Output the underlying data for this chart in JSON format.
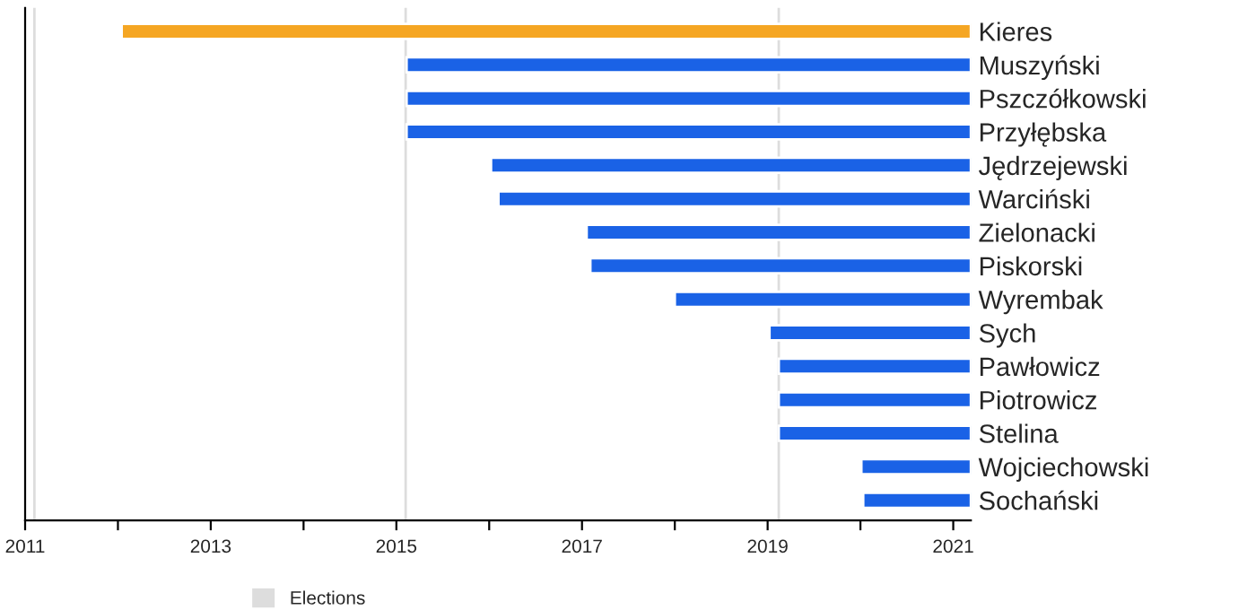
{
  "chart_data": {
    "type": "bar",
    "orientation": "horizontal",
    "categories": [
      "Kieres",
      "Muszyński",
      "Pszczółkowski",
      "Przyłębska",
      "Jędrzejewski",
      "Warciński",
      "Zielonacki",
      "Piskorski",
      "Wyrembak",
      "Sych",
      "Pawłowicz",
      "Piotrowicz",
      "Stelina",
      "Wojciechowski",
      "Sochański"
    ],
    "base": [
      2012.04,
      2015.11,
      2015.11,
      2015.11,
      2016.02,
      2016.1,
      2017.05,
      2017.09,
      2018.0,
      2019.02,
      2019.12,
      2019.12,
      2019.12,
      2020.01,
      2020.03
    ],
    "values": [
      9.15,
      6.08,
      6.08,
      6.08,
      5.17,
      5.09,
      4.14,
      4.1,
      3.19,
      2.17,
      2.07,
      2.07,
      2.07,
      1.18,
      1.16
    ],
    "colors": [
      "#f5a623",
      "#1a62e6",
      "#1a62e6",
      "#1a62e6",
      "#1a62e6",
      "#1a62e6",
      "#1a62e6",
      "#1a62e6",
      "#1a62e6",
      "#1a62e6",
      "#1a62e6",
      "#1a62e6",
      "#1a62e6",
      "#1a62e6",
      "#1a62e6"
    ],
    "xlim": [
      2011,
      2021.19
    ],
    "xticks": [
      2011,
      {
        "value": 2012,
        "label": null
      },
      2013,
      {
        "value": 2014,
        "label": null
      },
      2015,
      {
        "value": 2016,
        "label": null
      },
      2017,
      {
        "value": 2018,
        "label": null
      },
      2019,
      {
        "value": 2020,
        "label": null
      },
      2021
    ],
    "ref_lines": [
      {
        "axis": "x",
        "value": 2011.1,
        "label": "Elections",
        "color": "#dddddd"
      },
      {
        "axis": "x",
        "value": 2015.1,
        "color": "#dddddd"
      },
      {
        "axis": "x",
        "value": 2019.12,
        "color": "#dddddd"
      }
    ],
    "legend": "bottom",
    "grid": false
  }
}
